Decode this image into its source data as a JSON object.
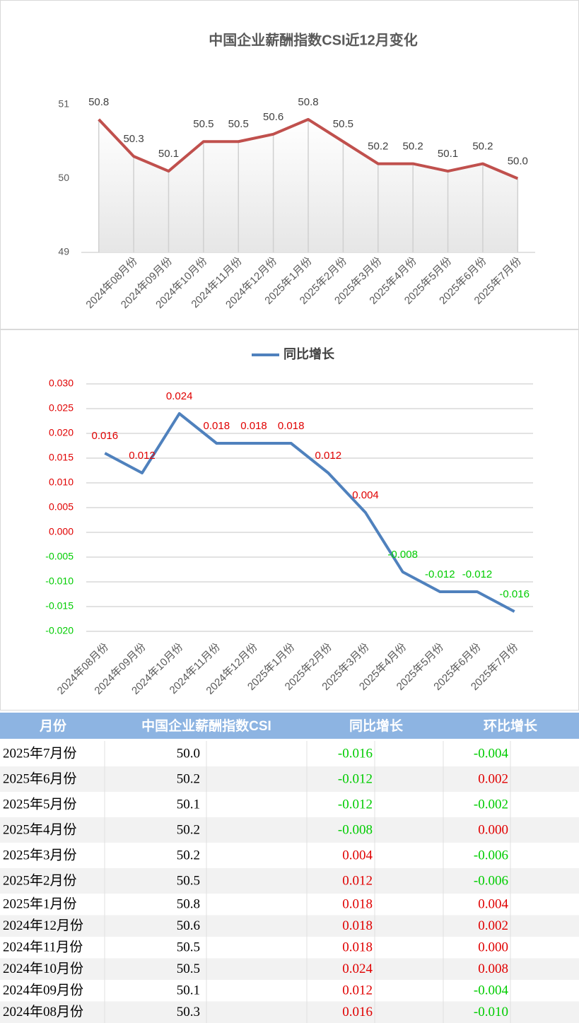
{
  "chart_data": [
    {
      "type": "line",
      "title": "中国企业薪酬指数CSI近12月变化",
      "categories": [
        null,
        "2024年08月份",
        "2024年09月份",
        "2024年10月份",
        "2024年11月份",
        "2024年12月份",
        "2025年1月份",
        "2025年2月份",
        "2025年3月份",
        "2025年4月份",
        "2025年5月份",
        "2025年6月份",
        "2025年7月份"
      ],
      "values": [
        50.8,
        50.3,
        50.1,
        50.5,
        50.5,
        50.6,
        50.8,
        50.5,
        50.2,
        50.2,
        50.1,
        50.2,
        50.0
      ],
      "value_labels": [
        "50.8",
        "50.3",
        "50.1",
        "50.5",
        "50.5",
        "50.6",
        "50.8",
        "50.5",
        "50.2",
        "50.2",
        "50.1",
        "50.2",
        "50.0"
      ],
      "color": "#c0504d",
      "ylim": [
        49,
        51
      ],
      "yticks": [
        49,
        50,
        51
      ],
      "drop_lines": true,
      "grid": false
    },
    {
      "type": "line",
      "categories": [
        "2024年08月份",
        "2024年09月份",
        "2024年10月份",
        "2024年11月份",
        "2024年12月份",
        "2025年1月份",
        "2025年2月份",
        "2025年3月份",
        "2025年4月份",
        "2025年5月份",
        "2025年6月份",
        "2025年7月份"
      ],
      "series": [
        {
          "name": "同比增长",
          "color": "#4f81bd",
          "values": [
            0.016,
            0.012,
            0.024,
            0.018,
            0.018,
            0.018,
            0.012,
            0.004,
            -0.008,
            -0.012,
            -0.012,
            -0.016
          ]
        }
      ],
      "ylim": [
        -0.02,
        0.03
      ],
      "yticks": [
        {
          "value": -0.02,
          "label": "-0.020"
        },
        {
          "value": -0.015,
          "label": "-0.015"
        },
        {
          "value": -0.01,
          "label": "-0.010"
        },
        {
          "value": -0.005,
          "label": "-0.005"
        },
        {
          "value": 0,
          "label": "0.000"
        },
        {
          "value": 0.005,
          "label": "0.005"
        },
        {
          "value": 0.01,
          "label": "0.010"
        },
        {
          "value": 0.015,
          "label": "0.015"
        },
        {
          "value": 0.02,
          "label": "0.020"
        },
        {
          "value": 0.025,
          "label": "0.025"
        },
        {
          "value": 0.03,
          "label": "0.030"
        }
      ],
      "grid": true,
      "legend": "top",
      "positive_color": "#e00000",
      "negative_color": "#00cc00"
    }
  ],
  "table": {
    "header": [
      "月份",
      "中国企业薪酬指数CSI",
      "同比增长",
      "环比增长"
    ],
    "rows": [
      [
        "2025年7月份",
        "50.0",
        "-0.016",
        "-0.004"
      ],
      [
        "2025年6月份",
        "50.2",
        "-0.012",
        "0.002"
      ],
      [
        "2025年5月份",
        "50.1",
        "-0.012",
        "-0.002"
      ],
      [
        "2025年4月份",
        "50.2",
        "-0.008",
        "0.000"
      ],
      [
        "2025年3月份",
        "50.2",
        "0.004",
        "-0.006"
      ],
      [
        "2025年2月份",
        "50.5",
        "0.012",
        "-0.006"
      ],
      [
        "2025年1月份",
        "50.8",
        "0.018",
        "0.004"
      ],
      [
        "2024年12月份",
        "50.6",
        "0.018",
        "0.002"
      ],
      [
        "2024年11月份",
        "50.5",
        "0.018",
        "0.000"
      ],
      [
        "2024年10月份",
        "50.5",
        "0.024",
        "0.008"
      ],
      [
        "2024年09月份",
        "50.1",
        "0.012",
        "-0.004"
      ],
      [
        "2024年08月份",
        "50.3",
        "0.016",
        "-0.010"
      ]
    ]
  }
}
